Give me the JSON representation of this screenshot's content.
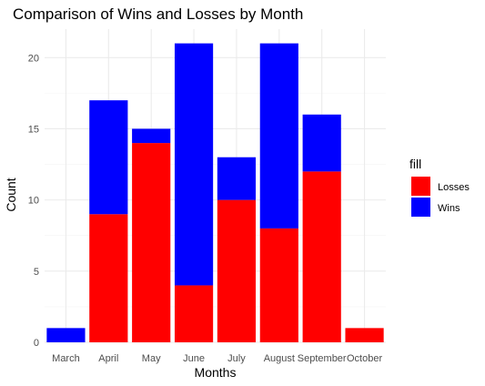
{
  "chart_data": {
    "type": "bar",
    "stacked": true,
    "title": "Comparison of Wins and Losses by Month",
    "xlabel": "Months",
    "ylabel": "Count",
    "categories": [
      "March",
      "April",
      "May",
      "June",
      "July",
      "August",
      "September",
      "October"
    ],
    "series": [
      {
        "name": "Losses",
        "color": "#ff0000",
        "values": [
          0,
          9,
          14,
          4,
          10,
          8,
          12,
          1
        ]
      },
      {
        "name": "Wins",
        "color": "#0000ff",
        "values": [
          1,
          8,
          1,
          17,
          3,
          13,
          4,
          0
        ]
      }
    ],
    "ylim": [
      0,
      22
    ],
    "yticks": [
      0,
      5,
      10,
      15,
      20
    ],
    "grid": true,
    "legend": {
      "title": "fill",
      "position": "right"
    }
  }
}
